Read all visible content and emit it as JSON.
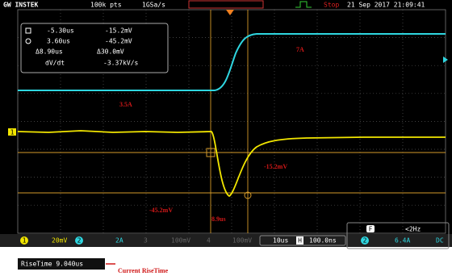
{
  "header": {
    "brand": "GW INSTEK",
    "points": "100k pts",
    "sample_rate": "1GSa/s",
    "status": "Stop",
    "datetime": "21 Sep 2017 21:09:41"
  },
  "cursor_panel": {
    "rows": [
      [
        "-5.30us",
        "-15.2mV"
      ],
      [
        "3.60us",
        "-45.2mV"
      ],
      [
        "Δ8.90us",
        "Δ30.0mV"
      ],
      [
        "dV/dt",
        "-3.37kV/s"
      ]
    ]
  },
  "annotations": {
    "high_current": "7A",
    "low_current": "3.5A",
    "cursor1_voltage": "-15.2mV",
    "cursor2_voltage": "-45.2mV",
    "time_delta": "8.9us",
    "rise_time_note": "Current RiseTime"
  },
  "channels": [
    {
      "number": "1",
      "scale": "20mV"
    },
    {
      "number": "2",
      "scale": "2A"
    },
    {
      "number": "3",
      "scale": "100mV"
    },
    {
      "number": "4",
      "scale": "100mV"
    }
  ],
  "timebase": {
    "scale": "10us",
    "position_key": "H",
    "position": "100.0ns"
  },
  "trigger": {
    "key": "F",
    "frequency": "<2Hz",
    "source": "2",
    "level": "6.4A",
    "coupling": "DC"
  },
  "measurement": {
    "label": "RiseTime 9.040us"
  }
}
